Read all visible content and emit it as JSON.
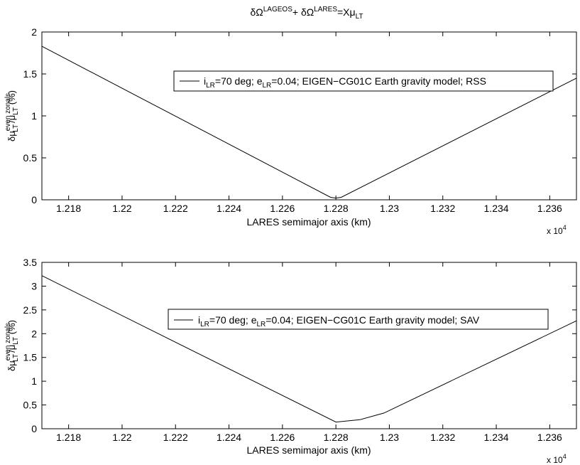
{
  "figure": {
    "title": {
      "delta": "δΩ",
      "sup1": "LAGEOS",
      "plus": "+ δΩ",
      "sup2": "LARES",
      "eq": "=Xμ",
      "sub": "LT"
    }
  },
  "chart_data": [
    {
      "type": "line",
      "xlabel": "LARES semimajor axis (km)",
      "x_multiplier": "x 10",
      "x_multiplier_exp": "4",
      "ylabel": {
        "main": "δμ",
        "sup": "even zonals",
        "sub": "LT",
        "slash": "/μ",
        "sub2": "LT",
        "unit": " (%)"
      },
      "xlim": [
        12170,
        12370
      ],
      "ylim": [
        0,
        2
      ],
      "xticks": [
        12180,
        12200,
        12220,
        12240,
        12260,
        12280,
        12300,
        12320,
        12340,
        12360
      ],
      "xtick_labels": [
        "1.218",
        "1.22",
        "1.222",
        "1.224",
        "1.226",
        "1.228",
        "1.23",
        "1.232",
        "1.234",
        "1.236"
      ],
      "yticks": [
        0,
        0.5,
        1,
        1.5,
        2
      ],
      "ytick_labels": [
        "0",
        "0.5",
        "1",
        "1.5",
        "2"
      ],
      "legend": {
        "placement": "top-right",
        "i": "i",
        "i_sub": "LR",
        "mid": "=70 deg; e",
        "e_sub": "LR",
        "rest": "=0.04; EIGEN−CG01C Earth gravity model; RSS"
      },
      "series": [
        {
          "x": [
            12170,
            12278,
            12280,
            12282,
            12370
          ],
          "y": [
            1.83,
            0.03,
            0.02,
            0.03,
            1.45
          ]
        }
      ]
    },
    {
      "type": "line",
      "xlabel": "LARES semimajor axis (km)",
      "x_multiplier": "x 10",
      "x_multiplier_exp": "4",
      "ylabel": {
        "main": "δμ",
        "sup": "even zonals",
        "sub": "LT",
        "slash": "/μ",
        "sub2": "LT",
        "unit": " (%)"
      },
      "xlim": [
        12170,
        12370
      ],
      "ylim": [
        0,
        3.5
      ],
      "xticks": [
        12180,
        12200,
        12220,
        12240,
        12260,
        12280,
        12300,
        12320,
        12340,
        12360
      ],
      "xtick_labels": [
        "1.218",
        "1.22",
        "1.222",
        "1.224",
        "1.226",
        "1.228",
        "1.23",
        "1.232",
        "1.234",
        "1.236"
      ],
      "yticks": [
        0,
        0.5,
        1,
        1.5,
        2,
        2.5,
        3,
        3.5
      ],
      "ytick_labels": [
        "0",
        "0.5",
        "1",
        "1.5",
        "2",
        "2.5",
        "3",
        "3.5"
      ],
      "legend": {
        "placement": "top-right",
        "i": "i",
        "i_sub": "LR",
        "mid": "=70 deg; e",
        "e_sub": "LR",
        "rest": "=0.04; EIGEN−CG01C Earth gravity model; SAV"
      },
      "series": [
        {
          "x": [
            12170,
            12280,
            12289,
            12298,
            12370
          ],
          "y": [
            3.22,
            0.14,
            0.19,
            0.33,
            2.27
          ]
        }
      ]
    }
  ]
}
